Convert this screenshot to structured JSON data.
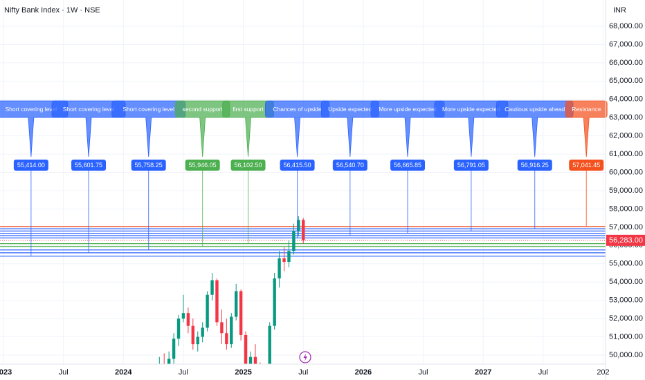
{
  "chart_data": {
    "type": "candlestick",
    "title": "Nifty Bank Index · 1W · NSE",
    "currency": "INR",
    "xlim": [
      2023,
      2028.03
    ],
    "xticks": [
      2023,
      {
        "value": 2023.5,
        "label": "Jul"
      },
      2024,
      {
        "value": 2024.5,
        "label": "Jul"
      },
      2025,
      {
        "value": 2025.5,
        "label": "Jul"
      },
      2026,
      {
        "value": 2026.5,
        "label": "Jul"
      },
      2027,
      {
        "value": 2027.5,
        "label": "Jul"
      },
      {
        "value": 2028,
        "label": "202"
      }
    ],
    "ylim": [
      49508,
      69437
    ],
    "yticks": [
      {
        "value": 50000,
        "label": "50,000.00"
      },
      {
        "value": 51000,
        "label": "51,000.00"
      },
      {
        "value": 52000,
        "label": "52,000.00"
      },
      {
        "value": 53000,
        "label": "53,000.00"
      },
      {
        "value": 54000,
        "label": "54,000.00"
      },
      {
        "value": 55000,
        "label": "55,000.00"
      },
      {
        "value": 56000,
        "label": "56,000.00"
      },
      {
        "value": 57000,
        "label": "57,000.00"
      },
      {
        "value": 58000,
        "label": "58,000.00"
      },
      {
        "value": 59000,
        "label": "59,000.00"
      },
      {
        "value": 60000,
        "label": "60,000.00"
      },
      {
        "value": 61000,
        "label": "61,000.00"
      },
      {
        "value": 62000,
        "label": "62,000.00"
      },
      {
        "value": 63000,
        "label": "63,000.00"
      },
      {
        "value": 64000,
        "label": "64,000.00"
      },
      {
        "value": 65000,
        "label": "65,000.00"
      },
      {
        "value": 66000,
        "label": "66,000.00"
      },
      {
        "value": 67000,
        "label": "67,000.00"
      },
      {
        "value": 68000,
        "label": "68,000.00"
      }
    ],
    "grid": true,
    "up_color": "#089981",
    "down_color": "#f23645",
    "x": [
      2024.3,
      2024.34,
      2024.38,
      2024.42,
      2024.46,
      2024.5,
      2024.54,
      2024.58,
      2024.62,
      2024.66,
      2024.7,
      2024.74,
      2024.78,
      2024.82,
      2024.86,
      2024.9,
      2024.94,
      2024.98,
      2025.02,
      2025.06,
      2025.1,
      2025.14,
      2025.18,
      2025.22,
      2025.26,
      2025.3,
      2025.34,
      2025.38,
      2025.42,
      2025.46,
      2025.5
    ],
    "open": [
      48500,
      49200,
      48900,
      49800,
      50900,
      52000,
      52300,
      51600,
      50600,
      51000,
      51500,
      53300,
      54100,
      51800,
      51200,
      50600,
      52100,
      53500,
      51100,
      49300,
      49900,
      49200,
      48600,
      48300,
      51600,
      54200,
      55300,
      55100,
      55700,
      56800,
      57400
    ],
    "high": [
      49900,
      50100,
      50200,
      51200,
      52200,
      53300,
      52600,
      52000,
      51300,
      51800,
      53500,
      54500,
      54200,
      52500,
      52000,
      52300,
      53900,
      53600,
      51300,
      50200,
      50600,
      49600,
      49400,
      51800,
      54500,
      55700,
      55900,
      56300,
      57200,
      57600,
      57500
    ],
    "low": [
      48200,
      48800,
      48700,
      49500,
      50500,
      51800,
      51200,
      50300,
      50200,
      50700,
      51300,
      53000,
      51600,
      50600,
      50300,
      50400,
      51900,
      50800,
      48900,
      48600,
      49000,
      48200,
      47800,
      48200,
      51400,
      53700,
      54600,
      54800,
      55500,
      56500,
      56100
    ],
    "close": [
      49200,
      48900,
      49800,
      50900,
      52000,
      52300,
      51600,
      50600,
      51000,
      51500,
      53300,
      54100,
      51800,
      51200,
      50600,
      52100,
      53500,
      51100,
      49300,
      49900,
      49200,
      48600,
      48300,
      51600,
      54200,
      55300,
      55100,
      55700,
      56800,
      57400,
      56283
    ],
    "last_price": {
      "value": 56283,
      "label": "56,283.00",
      "color": "#f23645"
    },
    "annotations": [
      {
        "label": "Short covering level",
        "x": 2023.23,
        "value": 55414,
        "value_label": "55,414.00",
        "color": "#2962ff"
      },
      {
        "label": "Short covering level",
        "x": 2023.71,
        "value": 55601.75,
        "value_label": "55,601.75",
        "color": "#2962ff"
      },
      {
        "label": "Short covering level",
        "x": 2024.21,
        "value": 55758.25,
        "value_label": "55,758.25",
        "color": "#2962ff"
      },
      {
        "label": "second support",
        "x": 2024.66,
        "value": 55946.05,
        "value_label": "55,946.05",
        "color": "#4caf50"
      },
      {
        "label": "first support",
        "x": 2025.04,
        "value": 56102.5,
        "value_label": "56,102.50",
        "color": "#4caf50"
      },
      {
        "label": "Chances of upside",
        "x": 2025.45,
        "value": 56415.5,
        "value_label": "56,415.50",
        "color": "#2962ff"
      },
      {
        "label": "Upside expected",
        "x": 2025.89,
        "value": 56540.7,
        "value_label": "56,540.70",
        "color": "#2962ff"
      },
      {
        "label": "More upside expected",
        "x": 2026.37,
        "value": 56665.85,
        "value_label": "56,665.85",
        "color": "#2962ff"
      },
      {
        "label": "More upside expected",
        "x": 2026.9,
        "value": 56791.05,
        "value_label": "56,791.05",
        "color": "#2962ff"
      },
      {
        "label": "Cautious upside ahead",
        "x": 2027.43,
        "value": 56916.25,
        "value_label": "56,916.25",
        "color": "#2962ff"
      },
      {
        "label": "Resistance",
        "x": 2027.86,
        "value": 57041.45,
        "value_label": "57,041.45",
        "color": "#f4511e"
      }
    ]
  }
}
